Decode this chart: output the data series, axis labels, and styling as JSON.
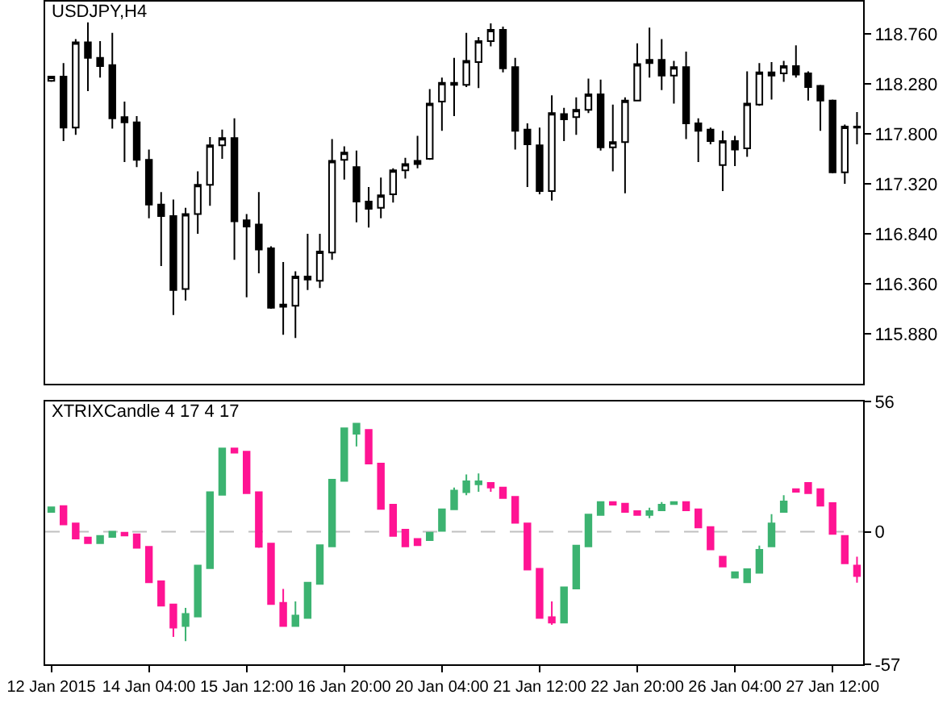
{
  "chart_data": [
    {
      "type": "candlestick",
      "title": "USDJPY,H4",
      "categories": [
        null,
        null,
        null,
        null,
        null,
        null,
        null,
        null,
        null,
        null,
        null,
        null,
        null,
        null,
        null,
        null,
        null,
        null,
        null,
        null,
        null,
        null,
        null,
        null,
        null,
        null,
        null,
        null,
        null,
        null,
        null,
        null,
        null,
        null,
        null,
        null,
        null,
        null,
        null,
        null,
        null,
        null,
        null,
        null,
        null,
        null,
        null,
        null,
        null,
        null,
        null,
        null,
        null,
        null,
        null,
        null,
        null,
        null,
        null,
        null,
        null,
        null,
        null,
        null,
        null,
        null,
        null
      ],
      "ohlc": [
        [
          118.31,
          118.35,
          118.3,
          118.35
        ],
        [
          118.35,
          118.48,
          117.73,
          117.86
        ],
        [
          117.86,
          118.71,
          117.79,
          118.68
        ],
        [
          118.68,
          118.87,
          118.21,
          118.53
        ],
        [
          118.53,
          118.69,
          118.34,
          118.45
        ],
        [
          118.46,
          118.77,
          117.85,
          117.95
        ],
        [
          117.96,
          118.11,
          117.53,
          117.91
        ],
        [
          117.91,
          117.97,
          117.48,
          117.55
        ],
        [
          117.55,
          117.65,
          116.99,
          117.12
        ],
        [
          117.12,
          117.24,
          116.53,
          117.01
        ],
        [
          117.01,
          117.17,
          116.06,
          116.3
        ],
        [
          116.31,
          117.09,
          116.2,
          117.03
        ],
        [
          117.03,
          117.44,
          116.84,
          117.31
        ],
        [
          117.31,
          117.77,
          117.11,
          117.69
        ],
        [
          117.69,
          117.84,
          117.56,
          117.76
        ],
        [
          117.76,
          117.95,
          116.59,
          116.96
        ],
        [
          116.97,
          117.03,
          116.23,
          116.91
        ],
        [
          116.93,
          117.24,
          116.46,
          116.69
        ],
        [
          116.7,
          116.72,
          116.12,
          116.13
        ],
        [
          116.16,
          116.57,
          115.87,
          116.14
        ],
        [
          116.15,
          116.48,
          115.84,
          116.43
        ],
        [
          116.43,
          116.84,
          116.3,
          116.4
        ],
        [
          116.39,
          116.84,
          116.32,
          116.67
        ],
        [
          116.66,
          117.75,
          116.59,
          117.54
        ],
        [
          117.55,
          117.68,
          117.36,
          117.62
        ],
        [
          117.48,
          117.64,
          116.95,
          117.15
        ],
        [
          117.15,
          117.29,
          116.9,
          117.08
        ],
        [
          117.09,
          117.38,
          116.99,
          117.21
        ],
        [
          117.22,
          117.47,
          117.14,
          117.45
        ],
        [
          117.45,
          117.57,
          117.37,
          117.51
        ],
        [
          117.51,
          117.78,
          117.47,
          117.54
        ],
        [
          117.56,
          118.23,
          117.55,
          118.09
        ],
        [
          118.11,
          118.34,
          117.83,
          118.29
        ],
        [
          118.29,
          118.53,
          117.97,
          118.27
        ],
        [
          118.27,
          118.77,
          118.25,
          118.5
        ],
        [
          118.49,
          118.73,
          118.24,
          118.69
        ],
        [
          118.69,
          118.86,
          118.64,
          118.8
        ],
        [
          118.8,
          118.83,
          118.39,
          118.43
        ],
        [
          118.44,
          118.53,
          117.65,
          117.83
        ],
        [
          117.84,
          117.9,
          117.29,
          117.7
        ],
        [
          117.69,
          117.86,
          117.22,
          117.25
        ],
        [
          117.25,
          118.17,
          117.16,
          118.0
        ],
        [
          117.99,
          118.05,
          117.73,
          117.94
        ],
        [
          117.96,
          118.15,
          117.79,
          118.03
        ],
        [
          118.03,
          118.33,
          118.0,
          118.18
        ],
        [
          118.18,
          118.32,
          117.64,
          117.67
        ],
        [
          117.67,
          118.08,
          117.44,
          117.72
        ],
        [
          117.72,
          118.15,
          117.23,
          118.12
        ],
        [
          118.12,
          118.67,
          118.12,
          118.47
        ],
        [
          118.48,
          118.82,
          118.34,
          118.51
        ],
        [
          118.51,
          118.71,
          118.22,
          118.36
        ],
        [
          118.36,
          118.5,
          118.09,
          118.44
        ],
        [
          118.44,
          118.59,
          117.75,
          117.9
        ],
        [
          117.9,
          117.95,
          117.53,
          117.83
        ],
        [
          117.84,
          117.86,
          117.7,
          117.73
        ],
        [
          117.5,
          117.83,
          117.25,
          117.73
        ],
        [
          117.73,
          117.78,
          117.49,
          117.65
        ],
        [
          117.66,
          118.4,
          117.58,
          118.09
        ],
        [
          118.08,
          118.48,
          118.07,
          118.39
        ],
        [
          118.39,
          118.49,
          118.13,
          118.36
        ],
        [
          118.38,
          118.5,
          118.3,
          118.45
        ],
        [
          118.45,
          118.65,
          118.34,
          118.37
        ],
        [
          118.38,
          118.4,
          118.12,
          118.25
        ],
        [
          118.26,
          118.27,
          117.83,
          118.12
        ],
        [
          118.12,
          118.13,
          117.42,
          117.43
        ],
        [
          117.43,
          117.89,
          117.32,
          117.87
        ],
        [
          117.87,
          118.01,
          117.7,
          117.86
        ]
      ],
      "ylim": [
        115.4,
        119.07
      ],
      "yticks": [
        {
          "value": 115.88,
          "label": "115.880"
        },
        {
          "value": 116.36,
          "label": "116.360"
        },
        {
          "value": 116.84,
          "label": "116.840"
        },
        {
          "value": 117.32,
          "label": "117.320"
        },
        {
          "value": 117.8,
          "label": "117.800"
        },
        {
          "value": 118.28,
          "label": "118.280"
        },
        {
          "value": 118.76,
          "label": "118.760"
        }
      ]
    },
    {
      "type": "candlestick",
      "title": "XTRIXCandle 4 17 4 17",
      "categories": [
        "12 Jan 2015",
        null,
        null,
        null,
        null,
        null,
        null,
        null,
        "14 Jan 04:00",
        null,
        null,
        null,
        null,
        null,
        null,
        null,
        "15 Jan 12:00",
        null,
        null,
        null,
        null,
        null,
        null,
        null,
        "16 Jan 20:00",
        null,
        null,
        null,
        null,
        null,
        null,
        null,
        "20 Jan 04:00",
        null,
        null,
        null,
        null,
        null,
        null,
        null,
        "21 Jan 12:00",
        null,
        null,
        null,
        null,
        null,
        null,
        null,
        "22 Jan 20:00",
        null,
        null,
        null,
        null,
        null,
        null,
        null,
        "26 Jan 04:00",
        null,
        null,
        null,
        null,
        null,
        null,
        null,
        "27 Jan 12:00",
        null,
        null
      ],
      "ohlc": [
        [
          8.5,
          10.5,
          8.5,
          10.5
        ],
        [
          11.0,
          11.0,
          3.1,
          3.1
        ],
        [
          3.6,
          3.6,
          -2.9,
          -2.9
        ],
        [
          -2.5,
          -2.5,
          -4.9,
          -4.9
        ],
        [
          -4.9,
          -1.8,
          -4.9,
          -1.8
        ],
        [
          -2.2,
          0.0,
          -2.2,
          0.0
        ],
        [
          -0.4,
          -0.4,
          -1.6,
          -1.6
        ],
        [
          -1.1,
          -1.1,
          -6.9,
          -6.9
        ],
        [
          -6.5,
          -6.5,
          -21.7,
          -21.7
        ],
        [
          -21.3,
          -21.3,
          -31.8,
          -31.8
        ],
        [
          -31.3,
          -31.3,
          -45.2,
          -41.2
        ],
        [
          -40.5,
          -32.7,
          -47.0,
          -35.3
        ],
        [
          -36.5,
          -14.5,
          -36.5,
          -14.5
        ],
        [
          -15.7,
          17.0,
          -15.7,
          17.0
        ],
        [
          15.9,
          35.8,
          15.9,
          35.8
        ],
        [
          35.8,
          35.8,
          34.0,
          34.0
        ],
        [
          34.4,
          34.4,
          16.6,
          16.6
        ],
        [
          17.0,
          17.0,
          -6.9,
          -6.5
        ],
        [
          -5.1,
          -5.1,
          -31.1,
          -31.1
        ],
        [
          -30.6,
          -24.6,
          -40.5,
          -40.5
        ],
        [
          -40.5,
          -30.0,
          -40.5,
          -36.0
        ],
        [
          -37.1,
          -21.9,
          -37.1,
          -21.9
        ],
        [
          -22.4,
          -5.8,
          -22.4,
          -5.8
        ],
        [
          -6.3,
          22.4,
          -6.3,
          22.4
        ],
        [
          21.9,
          44.5,
          21.9,
          44.5
        ],
        [
          42.1,
          46.5,
          36.7,
          46.5
        ],
        [
          43.8,
          43.8,
          29.3,
          29.3
        ],
        [
          29.3,
          29.3,
          9.8,
          9.8
        ],
        [
          11.6,
          11.6,
          -1.8,
          -1.8
        ],
        [
          0.9,
          0.9,
          -6.3,
          -6.3
        ],
        [
          -3.1,
          -3.1,
          -5.8,
          -5.8
        ],
        [
          -3.6,
          -0.4,
          -3.6,
          -0.4
        ],
        [
          0.4,
          9.6,
          0.4,
          9.6
        ],
        [
          9.6,
          19.0,
          9.6,
          17.7
        ],
        [
          17.0,
          24.6,
          15.7,
          21.7
        ],
        [
          20.4,
          25.1,
          17.2,
          21.7
        ],
        [
          21.0,
          21.0,
          17.2,
          19.0
        ],
        [
          19.0,
          19.0,
          14.5,
          14.5
        ],
        [
          15.0,
          15.0,
          3.8,
          3.8
        ],
        [
          3.6,
          3.6,
          -16.3,
          -16.3
        ],
        [
          -15.9,
          -15.9,
          -37.1,
          -37.1
        ],
        [
          -36.7,
          -30.0,
          -40.0,
          -39.1
        ],
        [
          -39.1,
          -23.9,
          -39.1,
          -23.9
        ],
        [
          -24.4,
          -6.0,
          -24.4,
          -6.0
        ],
        [
          -6.3,
          7.4,
          -6.3,
          7.4
        ],
        [
          7.2,
          12.8,
          7.2,
          12.8
        ],
        [
          12.8,
          12.8,
          11.6,
          11.6
        ],
        [
          12.1,
          12.1,
          8.5,
          8.5
        ],
        [
          8.9,
          8.9,
          7.2,
          7.2
        ],
        [
          7.2,
          10.3,
          5.8,
          8.9
        ],
        [
          9.2,
          12.8,
          9.2,
          11.6
        ],
        [
          11.9,
          12.8,
          11.9,
          12.8
        ],
        [
          12.8,
          12.8,
          9.2,
          9.2
        ],
        [
          9.6,
          9.6,
          1.8,
          1.8
        ],
        [
          2.0,
          2.0,
          -7.6,
          -7.6
        ],
        [
          -10.7,
          -10.7,
          -15.0,
          -15.0
        ],
        [
          -19.7,
          -17.4,
          -19.7,
          -17.4
        ],
        [
          -21.7,
          -16.1,
          -21.7,
          -16.1
        ],
        [
          -17.7,
          -6.0,
          -17.7,
          -7.8
        ],
        [
          -6.3,
          7.6,
          -6.3,
          3.6
        ],
        [
          8.5,
          15.7,
          8.5,
          13.0
        ],
        [
          18.3,
          18.3,
          17.2,
          17.2
        ],
        [
          21.0,
          21.0,
          16.6,
          16.6
        ],
        [
          18.3,
          18.3,
          11.2,
          11.2
        ],
        [
          12.3,
          12.3,
          -0.9,
          -0.9
        ],
        [
          -1.8,
          -1.8,
          -13.6,
          -13.6
        ],
        [
          -14.5,
          -10.7,
          -21.9,
          -19.0
        ]
      ],
      "colors": [
        "#3cb371",
        "#ff1493",
        "#ff1493",
        "#ff1493",
        "#3cb371",
        "#3cb371",
        "#ff1493",
        "#ff1493",
        "#ff1493",
        "#ff1493",
        "#ff1493",
        "#3cb371",
        "#3cb371",
        "#3cb371",
        "#3cb371",
        "#ff1493",
        "#ff1493",
        "#ff1493",
        "#ff1493",
        "#ff1493",
        "#3cb371",
        "#3cb371",
        "#3cb371",
        "#3cb371",
        "#3cb371",
        "#3cb371",
        "#ff1493",
        "#ff1493",
        "#ff1493",
        "#ff1493",
        "#ff1493",
        "#3cb371",
        "#3cb371",
        "#3cb371",
        "#3cb371",
        "#3cb371",
        "#ff1493",
        "#ff1493",
        "#ff1493",
        "#ff1493",
        "#ff1493",
        "#ff1493",
        "#3cb371",
        "#3cb371",
        "#3cb371",
        "#3cb371",
        "#ff1493",
        "#ff1493",
        "#ff1493",
        "#3cb371",
        "#3cb371",
        "#3cb371",
        "#ff1493",
        "#ff1493",
        "#ff1493",
        "#ff1493",
        "#3cb371",
        "#3cb371",
        "#3cb371",
        "#3cb371",
        "#3cb371",
        "#ff1493",
        "#ff1493",
        "#ff1493",
        "#ff1493",
        "#ff1493",
        "#ff1493"
      ],
      "ylim": [
        -57,
        56
      ],
      "yticks": [
        56,
        0,
        -57
      ],
      "ref_lines": [
        {
          "axis": "y",
          "value": 0,
          "color": "#c0c0c0",
          "line_style": "dashed"
        }
      ]
    }
  ]
}
